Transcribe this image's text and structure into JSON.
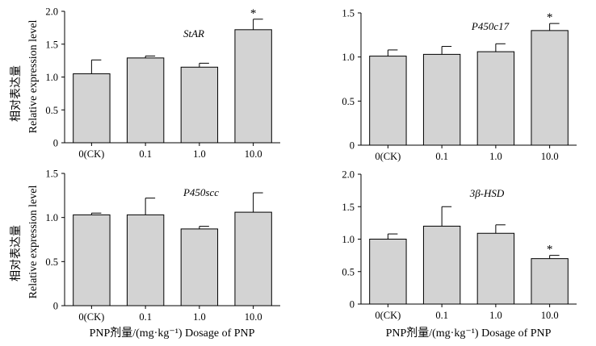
{
  "figure": {
    "y_axis_label_zh": "相对表达量",
    "y_axis_label_en": "Relative expression level",
    "x_axis_label": "PNP剂量/(mg·kg⁻¹) Dosage of PNP"
  },
  "chart_data": [
    {
      "type": "bar",
      "title": "StAR",
      "categories": [
        "0(CK)",
        "0.1",
        "1.0",
        "10.0"
      ],
      "values": [
        1.05,
        1.29,
        1.15,
        1.72
      ],
      "errors": [
        0.21,
        0.03,
        0.06,
        0.16
      ],
      "significance": [
        "",
        "",
        "",
        "*"
      ],
      "ylim": [
        0,
        2.0
      ],
      "yticks": [
        "0",
        "0.5",
        "1.0",
        "1.5",
        "2.0"
      ],
      "ytick_values": [
        0,
        0.5,
        1.0,
        1.5,
        2.0
      ],
      "ylabel": "相对表达量 Relative expression level",
      "xlabel": ""
    },
    {
      "type": "bar",
      "title": "P450c17",
      "categories": [
        "0(CK)",
        "0.1",
        "1.0",
        "10.0"
      ],
      "values": [
        1.01,
        1.03,
        1.06,
        1.3
      ],
      "errors": [
        0.07,
        0.09,
        0.09,
        0.08
      ],
      "significance": [
        "",
        "",
        "",
        "*"
      ],
      "ylim": [
        0,
        1.5
      ],
      "yticks": [
        "0",
        "0.5",
        "1.0",
        "1.5"
      ],
      "ytick_values": [
        0,
        0.5,
        1.0,
        1.5
      ],
      "ylabel": "",
      "xlabel": ""
    },
    {
      "type": "bar",
      "title": "P450scc",
      "categories": [
        "0(CK)",
        "0.1",
        "1.0",
        "10.0"
      ],
      "values": [
        1.03,
        1.03,
        0.87,
        1.06
      ],
      "errors": [
        0.02,
        0.19,
        0.03,
        0.22
      ],
      "significance": [
        "",
        "",
        "",
        ""
      ],
      "ylim": [
        0,
        1.5
      ],
      "yticks": [
        "0",
        "0.5",
        "1.0",
        "1.5"
      ],
      "ytick_values": [
        0,
        0.5,
        1.0,
        1.5
      ],
      "ylabel": "相对表达量 Relative expression level",
      "xlabel": "PNP剂量/(mg·kg⁻¹) Dosage of PNP"
    },
    {
      "type": "bar",
      "title": "3β-HSD",
      "categories": [
        "0(CK)",
        "0.1",
        "1.0",
        "10.0"
      ],
      "values": [
        1.0,
        1.2,
        1.09,
        0.7
      ],
      "errors": [
        0.08,
        0.3,
        0.13,
        0.05
      ],
      "significance": [
        "",
        "",
        "",
        "*"
      ],
      "ylim": [
        0,
        2.0
      ],
      "yticks": [
        "0",
        "0.5",
        "1.0",
        "1.5",
        "2.0"
      ],
      "ytick_values": [
        0,
        0.5,
        1.0,
        1.5,
        2.0
      ],
      "ylabel": "",
      "xlabel": "PNP剂量/(mg·kg⁻¹) Dosage of PNP"
    }
  ]
}
